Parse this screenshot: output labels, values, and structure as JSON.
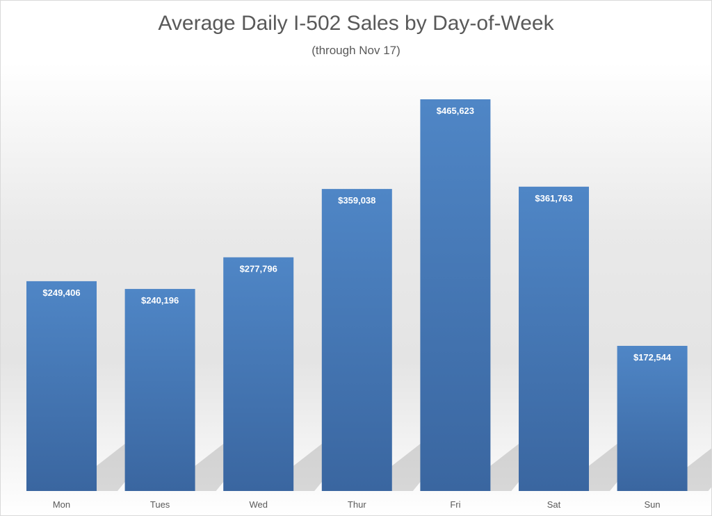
{
  "chart_data": {
    "type": "bar",
    "title": "Average Daily I-502 Sales by Day-of-Week",
    "subtitle": "(through Nov 17)",
    "xlabel": "",
    "ylabel": "",
    "categories": [
      "Mon",
      "Tues",
      "Wed",
      "Thur",
      "Fri",
      "Sat",
      "Sun"
    ],
    "values": [
      249406,
      240196,
      277796,
      359038,
      465623,
      361763,
      172544
    ],
    "data_labels": [
      "$249,406",
      "$240,196",
      "$277,796",
      "$359,038",
      "$465,623",
      "$361,763",
      "$172,544"
    ],
    "ylim": [
      0,
      465623
    ],
    "grid": false,
    "legend": "none",
    "bar_color": "#4f81bd"
  }
}
